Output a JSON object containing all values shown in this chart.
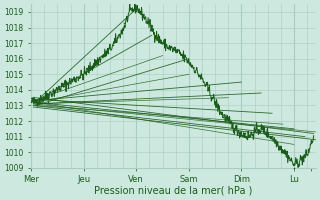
{
  "bg_color": "#cde8df",
  "grid_color": "#a8ccbf",
  "line_color": "#1a5c1a",
  "xlabel_text": "Pression niveau de la mer( hPa )",
  "xtick_labels": [
    "Mer",
    "Jeu",
    "Ven",
    "Sam",
    "Dim",
    "Lu"
  ],
  "xtick_positions": [
    0,
    24,
    48,
    72,
    96,
    120
  ],
  "xlim": [
    0,
    130
  ],
  "ylim": [
    1009,
    1019.5
  ],
  "yticks": [
    1009,
    1010,
    1011,
    1012,
    1013,
    1014,
    1015,
    1016,
    1017,
    1018,
    1019
  ],
  "figsize": [
    3.2,
    2.0
  ],
  "dpi": 100
}
